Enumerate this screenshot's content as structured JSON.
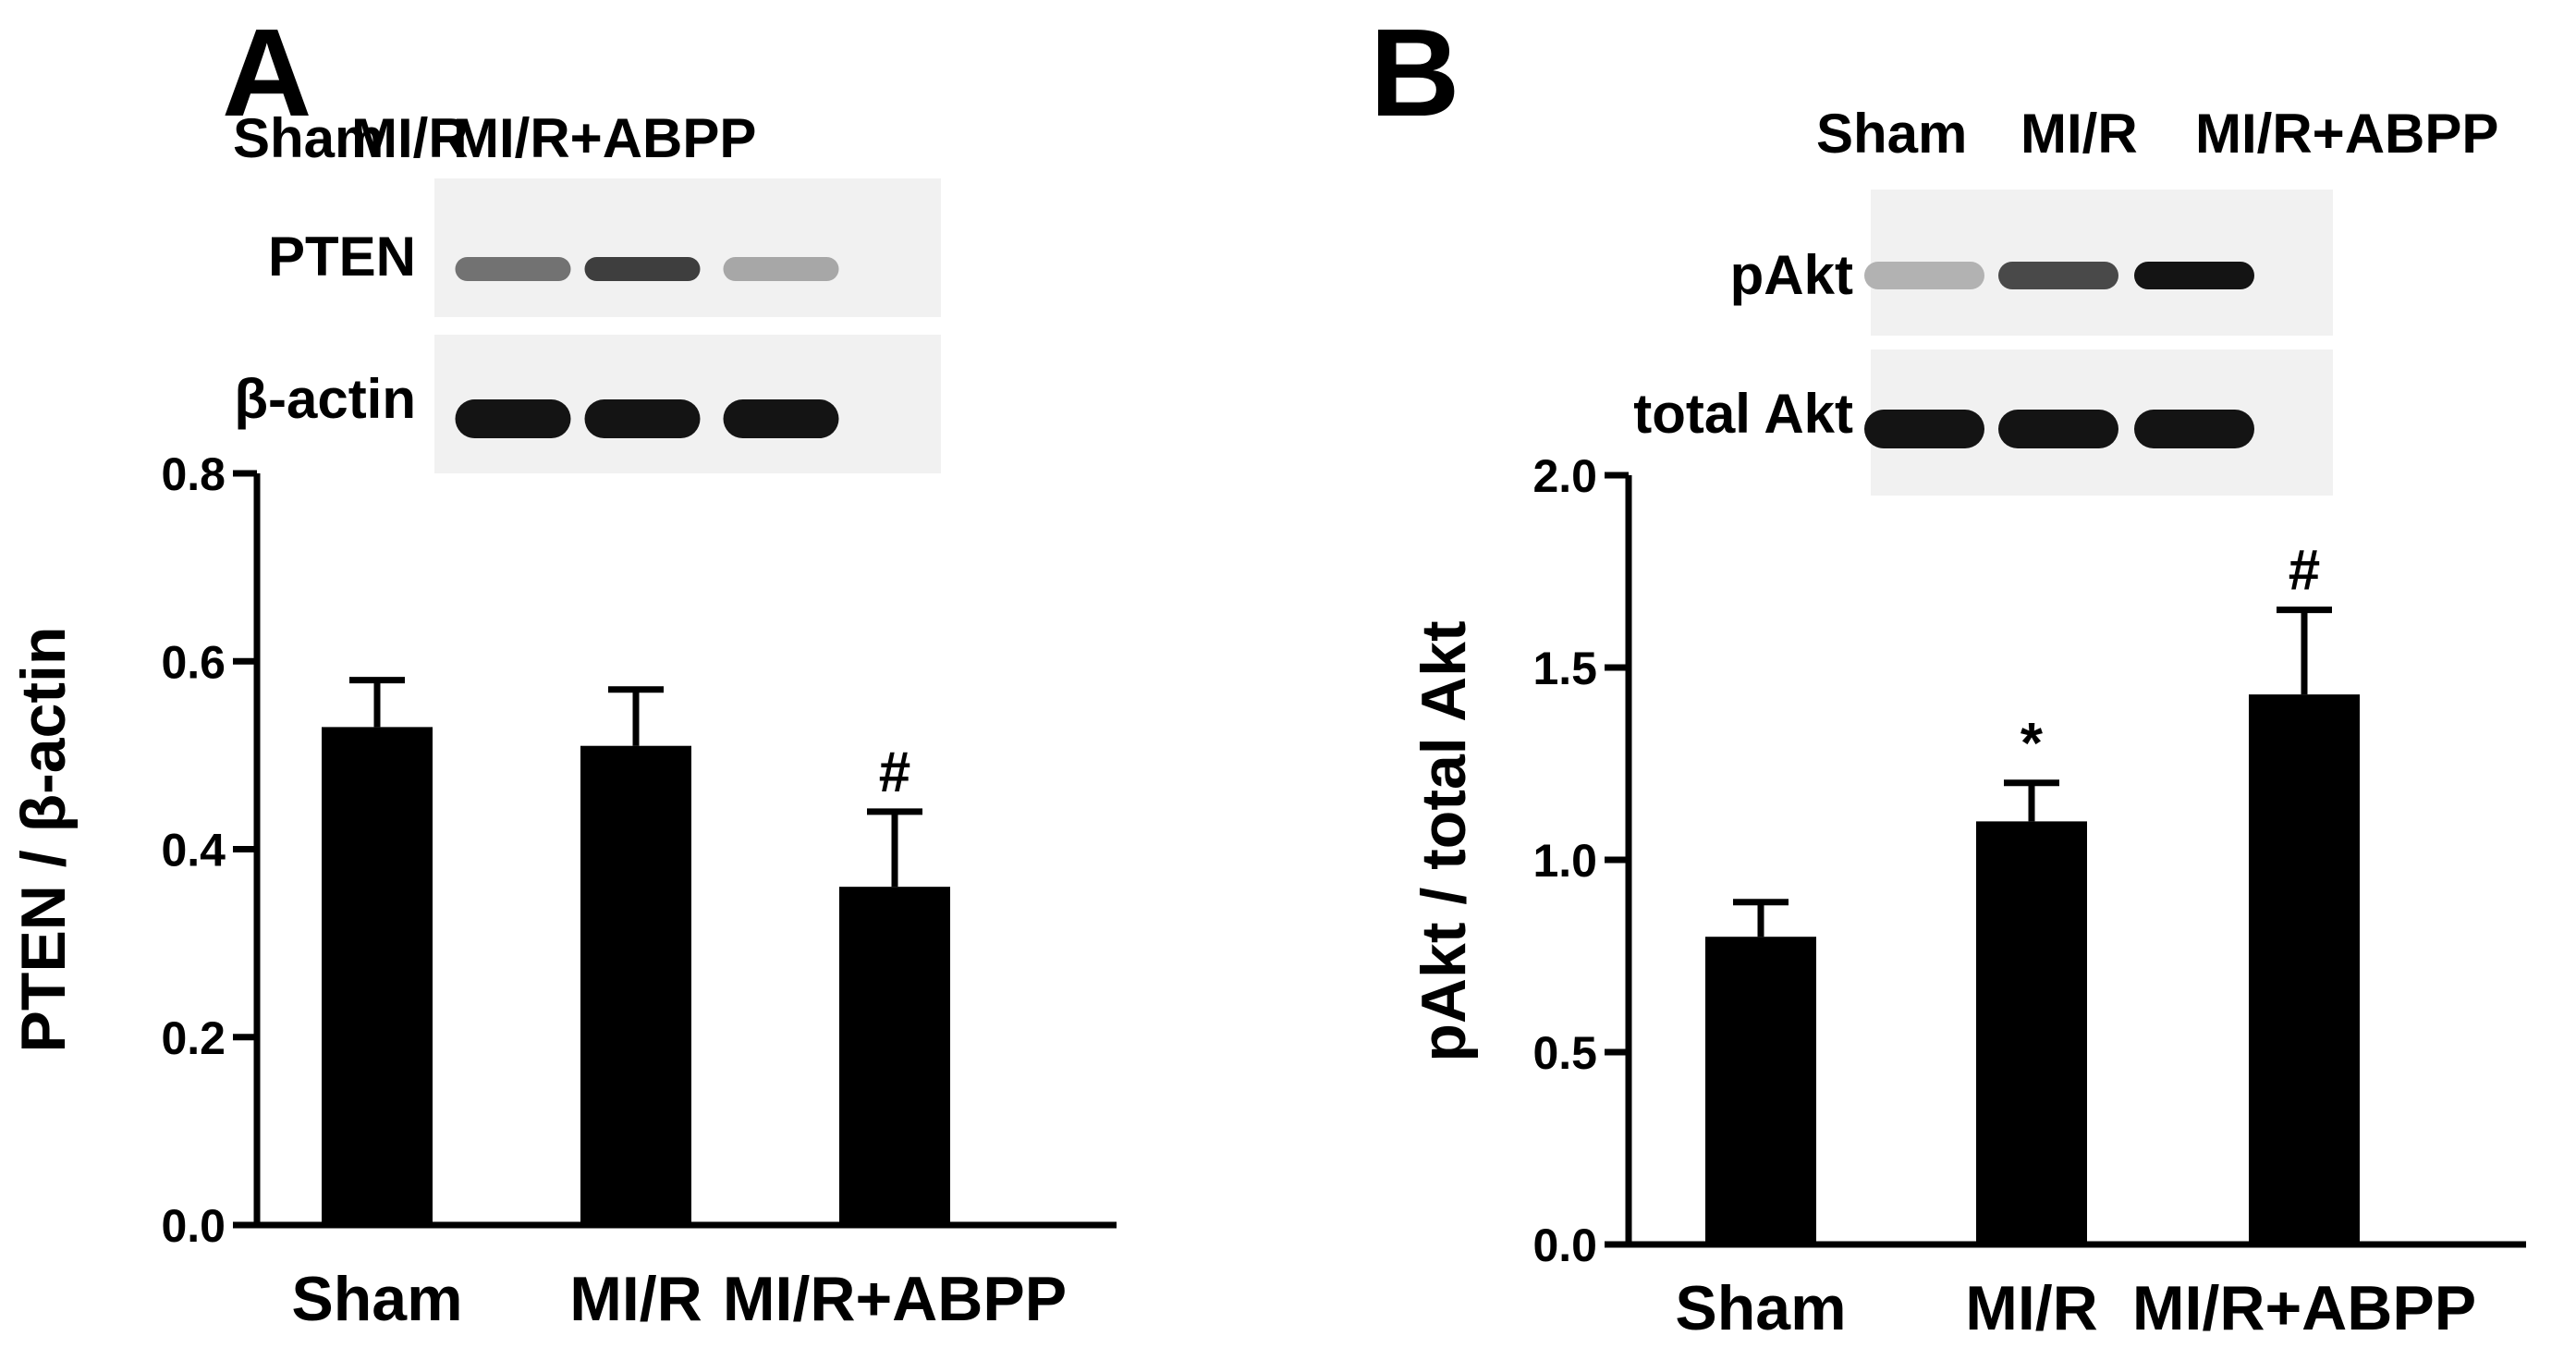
{
  "chart_data": [
    {
      "panel": "A",
      "type": "bar",
      "blot": {
        "lanes": [
          "Sham",
          "MI/R",
          "MI/R+ABPP"
        ],
        "rows": [
          {
            "label": "PTEN",
            "intensity": [
              0.55,
              0.8,
              0.3
            ]
          },
          {
            "label": "β-actin",
            "intensity": [
              1.0,
              1.0,
              1.0
            ]
          }
        ]
      },
      "categories": [
        "Sham",
        "MI/R",
        "MI/R+ABPP"
      ],
      "values": [
        0.53,
        0.51,
        0.36
      ],
      "errors": [
        0.05,
        0.06,
        0.08
      ],
      "annotations": [
        "",
        "",
        "#"
      ],
      "ylabel": "PTEN / β-actin",
      "xlabel": "",
      "ylim": [
        0,
        0.8
      ],
      "yticks": [
        "0.0",
        "0.2",
        "0.4",
        "0.6",
        "0.8"
      ],
      "grid": false
    },
    {
      "panel": "B",
      "type": "bar",
      "blot": {
        "lanes": [
          "Sham",
          "MI/R",
          "MI/R+ABPP"
        ],
        "rows": [
          {
            "label": "pAkt",
            "intensity": [
              0.25,
              0.75,
              1.0
            ]
          },
          {
            "label": "total Akt",
            "intensity": [
              1.0,
              1.0,
              1.0
            ]
          }
        ]
      },
      "categories": [
        "Sham",
        "MI/R",
        "MI/R+ABPP"
      ],
      "values": [
        0.8,
        1.1,
        1.43
      ],
      "errors": [
        0.09,
        0.1,
        0.22
      ],
      "annotations": [
        "",
        "*",
        "#"
      ],
      "ylabel": "pAkt / total Akt",
      "xlabel": "",
      "ylim": [
        0,
        2.0
      ],
      "yticks": [
        "0.0",
        "0.5",
        "1.0",
        "1.5",
        "2.0"
      ],
      "grid": false
    }
  ]
}
